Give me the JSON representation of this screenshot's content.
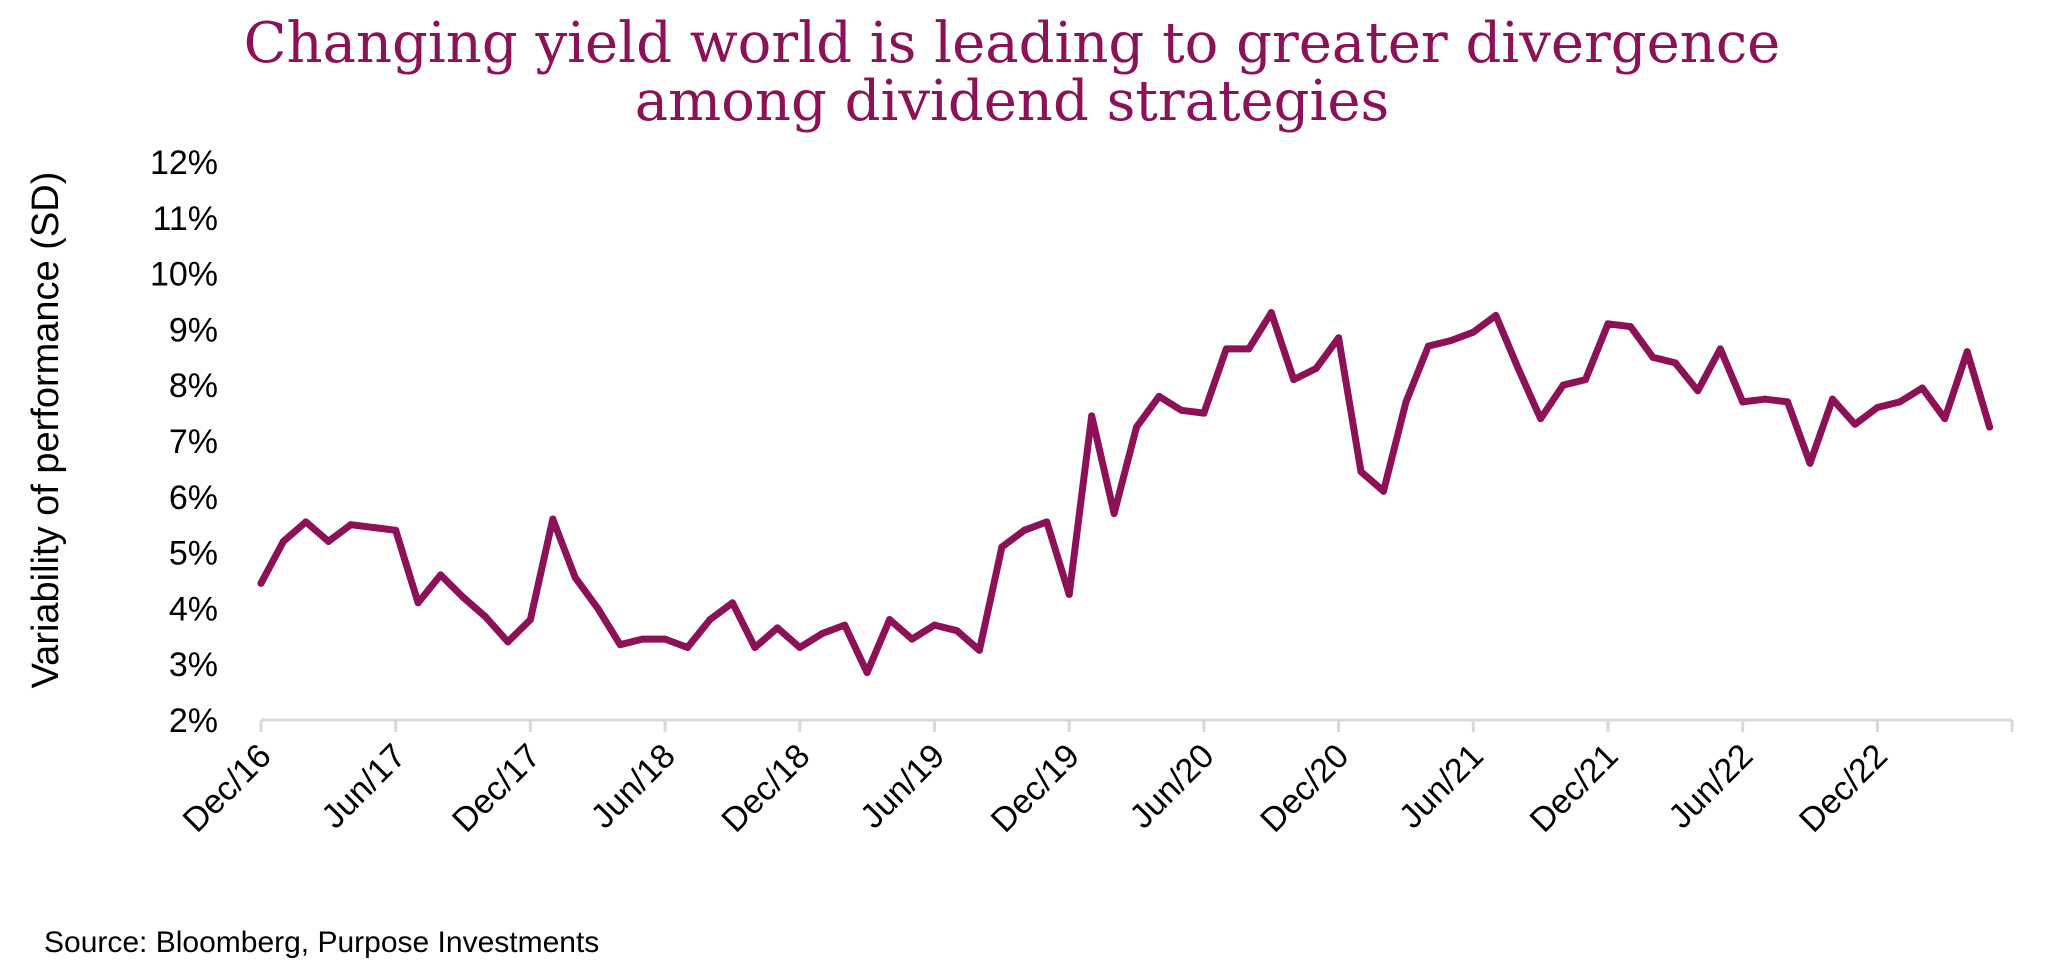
{
  "chart_data": {
    "type": "line",
    "title_lines": [
      "Changing yield world is leading to greater divergence",
      "among dividend strategies"
    ],
    "xlabel": "",
    "ylabel": "Variability of performance (SD)",
    "ylim": [
      2,
      12
    ],
    "y_ticks": [
      "2%",
      "3%",
      "4%",
      "5%",
      "6%",
      "7%",
      "8%",
      "9%",
      "10%",
      "11%",
      "12%"
    ],
    "x_ticks": [
      {
        "month_index": 0,
        "label": "Dec/16"
      },
      {
        "month_index": 6,
        "label": "Jun/17"
      },
      {
        "month_index": 12,
        "label": "Dec/17"
      },
      {
        "month_index": 18,
        "label": "Jun/18"
      },
      {
        "month_index": 24,
        "label": "Dec/18"
      },
      {
        "month_index": 30,
        "label": "Jun/19"
      },
      {
        "month_index": 36,
        "label": "Dec/19"
      },
      {
        "month_index": 42,
        "label": "Jun/20"
      },
      {
        "month_index": 48,
        "label": "Dec/20"
      },
      {
        "month_index": 54,
        "label": "Jun/21"
      },
      {
        "month_index": 60,
        "label": "Dec/21"
      },
      {
        "month_index": 66,
        "label": "Jun/22"
      },
      {
        "month_index": 72,
        "label": "Dec/22"
      }
    ],
    "x_range_months": [
      0,
      78
    ],
    "grid": false,
    "color": "#8c1157",
    "series": [
      {
        "name": "Variability of performance (SD)",
        "unit": "%",
        "values": [
          4.45,
          5.2,
          5.55,
          5.2,
          5.5,
          5.45,
          5.4,
          4.1,
          4.6,
          4.2,
          3.85,
          3.4,
          3.8,
          5.6,
          4.55,
          4.0,
          3.35,
          3.45,
          3.45,
          3.3,
          3.8,
          4.1,
          3.3,
          3.65,
          3.3,
          3.55,
          3.7,
          2.85,
          3.8,
          3.45,
          3.7,
          3.6,
          3.25,
          5.1,
          5.4,
          5.55,
          4.25,
          7.45,
          5.7,
          7.25,
          7.8,
          7.55,
          7.5,
          8.65,
          8.65,
          9.3,
          8.1,
          8.3,
          8.85,
          6.45,
          6.1,
          7.7,
          8.7,
          8.8,
          8.95,
          9.25,
          8.3,
          7.4,
          8.0,
          8.1,
          9.1,
          9.05,
          8.5,
          8.4,
          7.9,
          8.65,
          7.7,
          7.75,
          7.7,
          6.6,
          7.75,
          7.3,
          7.6,
          7.7,
          7.95,
          7.4,
          8.6,
          7.25
        ]
      }
    ]
  },
  "source": "Source: Bloomberg, Purpose Investments"
}
